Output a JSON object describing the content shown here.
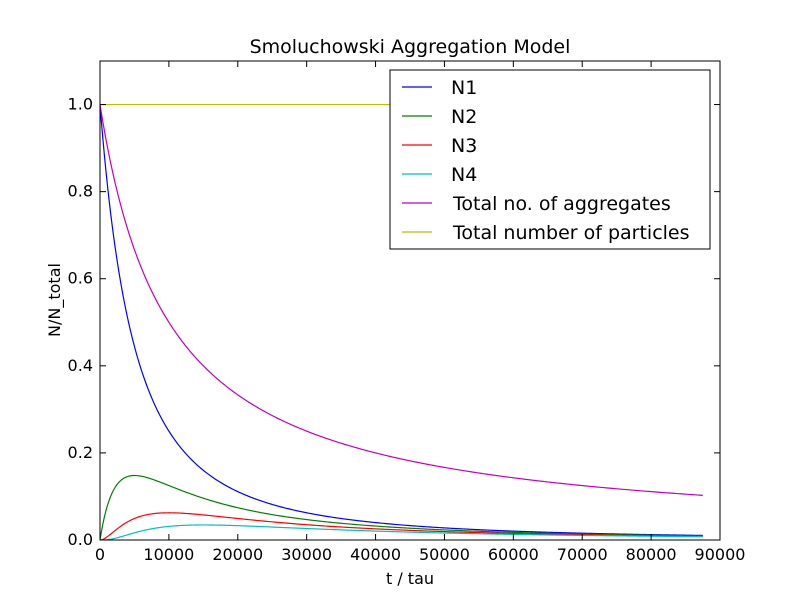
{
  "chart_data": {
    "type": "line",
    "title": "Smoluchowski Aggregation Model",
    "xlabel": "t / tau",
    "ylabel": "N/N_total",
    "xlim": [
      0,
      90000
    ],
    "ylim": [
      0.0,
      1.1
    ],
    "x_ticks": [
      0,
      10000,
      20000,
      30000,
      40000,
      50000,
      60000,
      70000,
      80000,
      90000
    ],
    "x_tick_labels": [
      "0",
      "10000",
      "20000",
      "30000",
      "40000",
      "50000",
      "60000",
      "70000",
      "80000",
      "90000"
    ],
    "y_ticks": [
      0.0,
      0.2,
      0.4,
      0.6,
      0.8,
      1.0
    ],
    "y_tick_labels": [
      "0.0",
      "0.2",
      "0.4",
      "0.6",
      "0.8",
      "1.0"
    ],
    "grid": false,
    "legend_position": "top-right",
    "x_max_data": 87500,
    "k": 0.0002,
    "series": [
      {
        "name": "N1",
        "color": "#0000ff",
        "formula": "n1"
      },
      {
        "name": "N2",
        "color": "#008000",
        "formula": "n2"
      },
      {
        "name": "N3",
        "color": "#ff0000",
        "formula": "n3"
      },
      {
        "name": "N4",
        "color": "#00bfbf",
        "formula": "n4"
      },
      {
        "name": "Total no. of aggregates",
        "color": "#bf00bf",
        "formula": "total_aggregates"
      },
      {
        "name": "Total number of particles",
        "color": "#bfbf00",
        "formula": "total_particles"
      }
    ]
  }
}
